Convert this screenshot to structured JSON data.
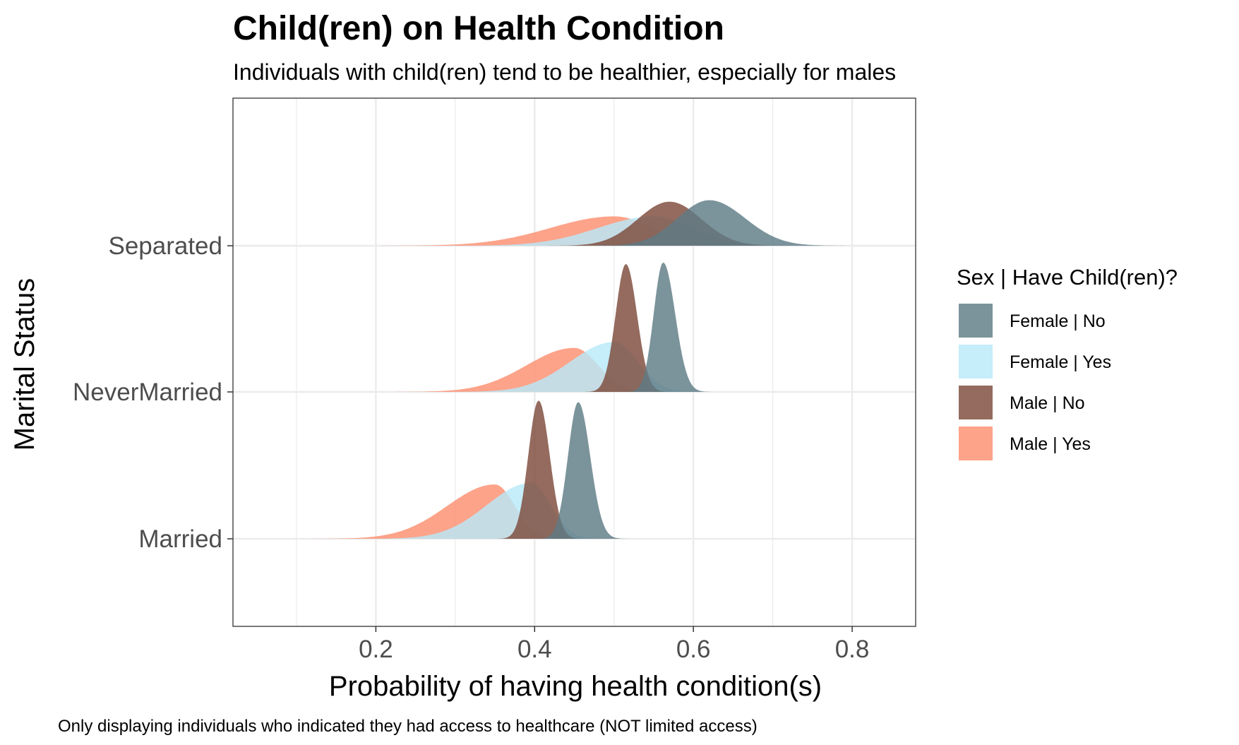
{
  "chart_data": {
    "type": "ridgeline-density",
    "title": "Child(ren) on Health Condition",
    "subtitle": "Individuals with child(ren) tend to be healthier, especially for males",
    "xlabel": "Probability of having health condition(s)",
    "ylabel": "Marital Status",
    "caption": "Only displaying individuals who indicated they had access to healthcare (NOT limited access)",
    "xlim": [
      0.02,
      0.88
    ],
    "x_ticks": [
      0.2,
      0.4,
      0.6,
      0.8
    ],
    "x_tick_labels": [
      "0.2",
      "0.4",
      "0.6",
      "0.8"
    ],
    "categories": [
      "Married",
      "NeverMarried",
      "Separated"
    ],
    "grid": true,
    "legend": {
      "title": "Sex | Have Child(ren)?",
      "position": "right",
      "entries": [
        "Female | No",
        "Female | Yes",
        "Male | No",
        "Male | Yes"
      ]
    },
    "colors": {
      "Female | No": "#5e7b85",
      "Female | Yes": "#b8e9f9",
      "Male | No": "#7d4a3a",
      "Male | Yes": "#fd8f6f"
    },
    "series": [
      {
        "name": "Male | Yes",
        "densities": {
          "Married": {
            "peak": 0.35,
            "sd_left": 0.06,
            "sd_right": 0.025,
            "height": 0.37
          },
          "NeverMarried": {
            "peak": 0.45,
            "sd_left": 0.06,
            "sd_right": 0.03,
            "height": 0.3
          },
          "Separated": {
            "peak": 0.5,
            "sd_left": 0.08,
            "sd_right": 0.05,
            "height": 0.2
          }
        }
      },
      {
        "name": "Female | Yes",
        "densities": {
          "Married": {
            "peak": 0.395,
            "sd_left": 0.055,
            "sd_right": 0.025,
            "height": 0.38
          },
          "NeverMarried": {
            "peak": 0.5,
            "sd_left": 0.055,
            "sd_right": 0.03,
            "height": 0.34
          },
          "Separated": {
            "peak": 0.55,
            "sd_left": 0.07,
            "sd_right": 0.05,
            "height": 0.2
          }
        }
      },
      {
        "name": "Male | No",
        "densities": {
          "Married": {
            "peak": 0.405,
            "sd_left": 0.013,
            "sd_right": 0.014,
            "height": 0.94
          },
          "NeverMarried": {
            "peak": 0.515,
            "sd_left": 0.013,
            "sd_right": 0.014,
            "height": 0.87
          },
          "Separated": {
            "peak": 0.57,
            "sd_left": 0.04,
            "sd_right": 0.04,
            "height": 0.3
          }
        }
      },
      {
        "name": "Female | No",
        "densities": {
          "Married": {
            "peak": 0.455,
            "sd_left": 0.013,
            "sd_right": 0.015,
            "height": 0.93
          },
          "NeverMarried": {
            "peak": 0.562,
            "sd_left": 0.012,
            "sd_right": 0.015,
            "height": 0.88
          },
          "Separated": {
            "peak": 0.62,
            "sd_left": 0.04,
            "sd_right": 0.045,
            "height": 0.31
          }
        }
      }
    ]
  }
}
